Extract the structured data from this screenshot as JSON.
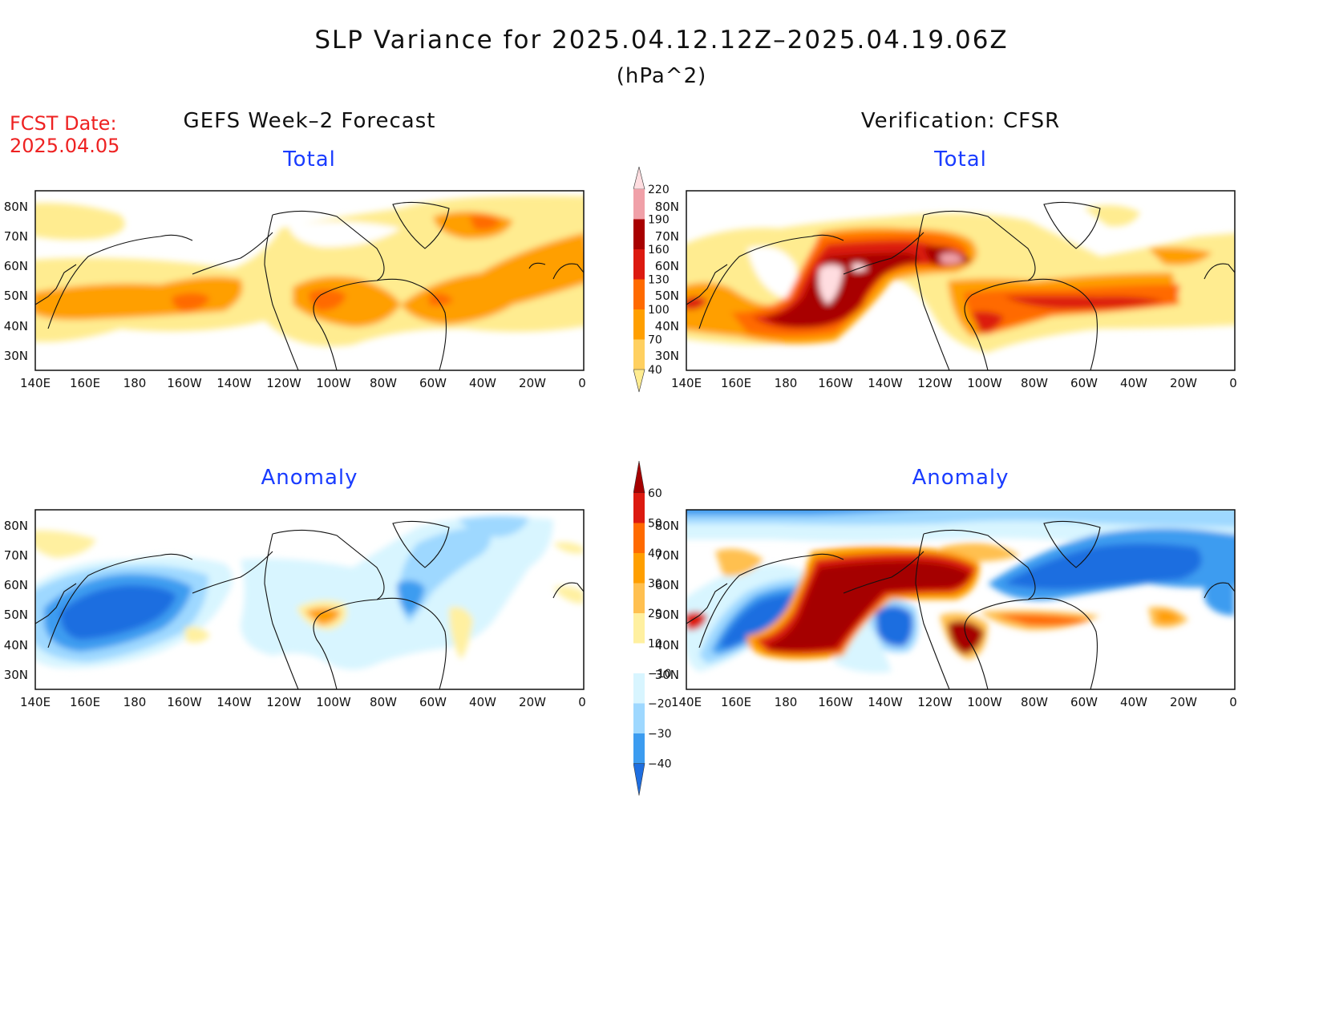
{
  "header": {
    "title": "SLP Variance for 2025.04.12.12Z–2025.04.19.06Z",
    "units": "(hPa^2)",
    "fcst_label": "FCST Date:",
    "fcst_date": "2025.04.05"
  },
  "columns": {
    "left": "GEFS Week–2 Forecast",
    "right": "Verification: CFSR"
  },
  "panels": [
    {
      "id": "forecast-total",
      "subtitle": "Total"
    },
    {
      "id": "verification-total",
      "subtitle": "Total"
    },
    {
      "id": "forecast-anomaly",
      "subtitle": "Anomaly"
    },
    {
      "id": "verification-anomaly",
      "subtitle": "Anomaly"
    }
  ],
  "axes": {
    "lat_labels": [
      "80N",
      "70N",
      "60N",
      "50N",
      "40N",
      "30N"
    ],
    "lon_labels": [
      "140E",
      "160E",
      "180",
      "160W",
      "140W",
      "120W",
      "100W",
      "80W",
      "60W",
      "40W",
      "20W",
      "0"
    ]
  },
  "colorbars": {
    "total": {
      "labels": [
        "220",
        "190",
        "160",
        "130",
        "100",
        "70",
        "40"
      ],
      "colors": [
        "#ffdde0",
        "#f0a0a8",
        "#a80000",
        "#dc1a10",
        "#ff6a00",
        "#ff9f00",
        "#ffd060",
        "#ffec90"
      ]
    },
    "anomaly": {
      "labels": [
        "60",
        "50",
        "40",
        "30",
        "20",
        "10",
        "−10",
        "−20",
        "−30",
        "−40"
      ],
      "colors": [
        "#a50000",
        "#dc1a10",
        "#ff6a00",
        "#ff9f00",
        "#ffc050",
        "#fff0a0",
        "#ffffff",
        "#d8f5ff",
        "#9ed8ff",
        "#3c9cf0",
        "#1e6ee0"
      ]
    }
  }
}
